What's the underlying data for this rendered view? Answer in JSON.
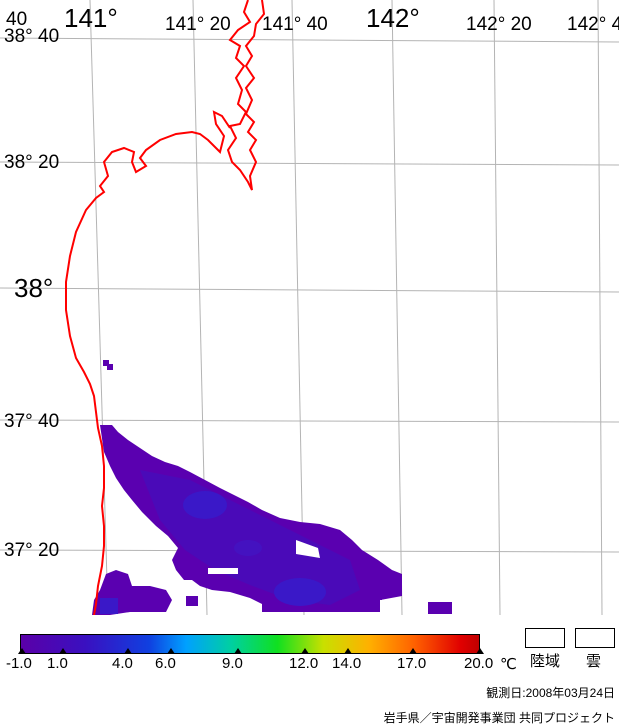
{
  "map": {
    "lon_labels_top": [
      {
        "text": "141°",
        "big": true
      },
      {
        "text": "141° 20",
        "big": false
      },
      {
        "text": "141° 40",
        "big": false
      },
      {
        "text": "142°",
        "big": true
      },
      {
        "text": "142° 20",
        "big": false
      },
      {
        "text": "142° 4",
        "big": false
      }
    ],
    "lat_labels_left": [
      {
        "text": "38° 40",
        "big": false
      },
      {
        "text": "38° 20",
        "big": false
      },
      {
        "text": "38°",
        "big": true
      },
      {
        "text": "37° 40",
        "big": false
      },
      {
        "text": "37° 20",
        "big": false
      }
    ],
    "corner_label": "40",
    "colors": {
      "coastline": "#ff0000",
      "grid": "#b4b4b4",
      "sst_low": "#5a00b0",
      "sst_mid": "#3a18c8"
    }
  },
  "legend": {
    "ticks": [
      "-1.0",
      "1.0",
      "4.0",
      "6.0",
      "9.0",
      "12.0",
      "14.0",
      "17.0",
      "20.0"
    ],
    "unit": "℃",
    "land_label": "陸域",
    "cloud_label": "雲"
  },
  "footer": {
    "observation_date": "観測日:2008年03月24日",
    "credit": "岩手県／宇宙開発事業団 共同プロジェクト"
  }
}
